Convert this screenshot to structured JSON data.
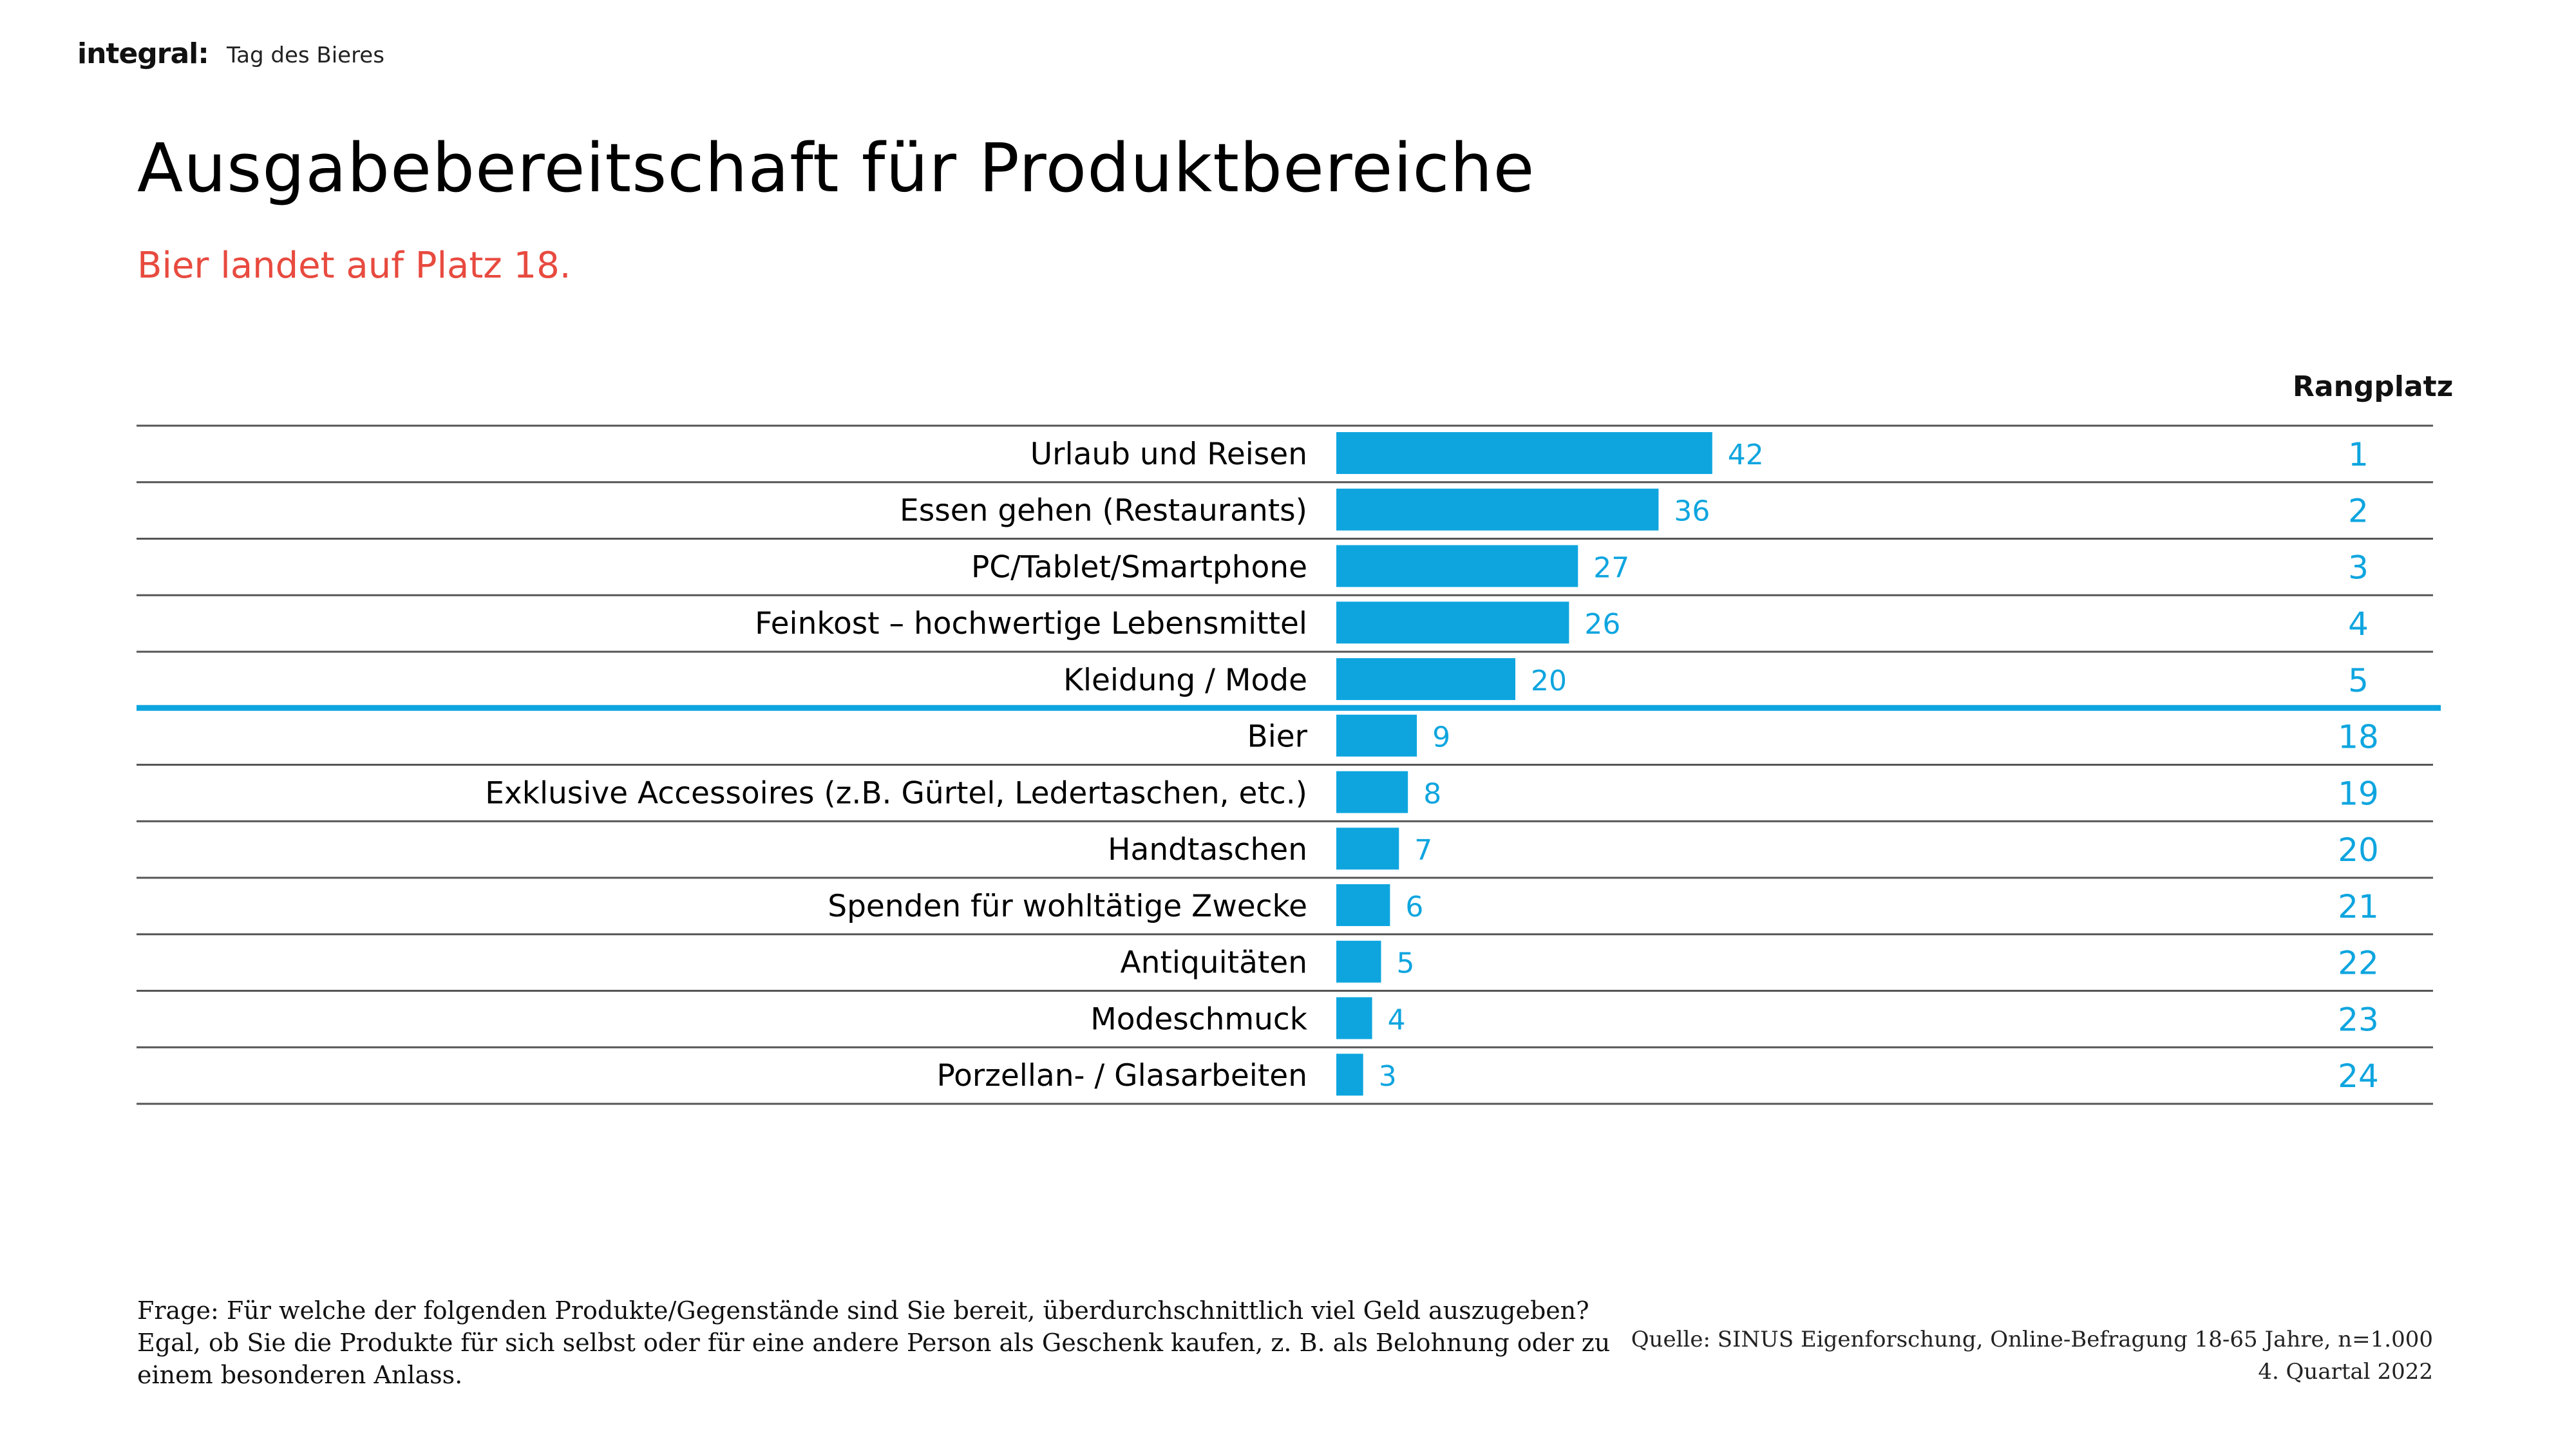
{
  "header": {
    "logo": "integral:",
    "document_name": "Tag des Bieres"
  },
  "title": "Ausgabebereitschaft für Produktbereiche",
  "subtitle": "Bier landet auf Platz 18.",
  "colors": {
    "bar": "#0ea5df",
    "value_label": "#0ea5df",
    "rank": "#0ea5df",
    "separator_highlight": "#0ea5df",
    "subtitle": "#e84a3f",
    "gridline": "#555555"
  },
  "chart_data": {
    "type": "bar",
    "orientation": "horizontal",
    "title": "Ausgabebereitschaft für Produktbereiche",
    "subtitle": "Bier landet auf Platz 18.",
    "xlabel": "",
    "ylabel": "",
    "xlim": [
      0,
      100
    ],
    "grid": false,
    "legend": "none",
    "rank_column_header": "Rangplatz",
    "separator_after_index": 4,
    "categories": [
      "Urlaub und Reisen",
      "Essen gehen (Restaurants)",
      "PC/Tablet/Smartphone",
      "Feinkost – hochwertige Lebensmittel",
      "Kleidung / Mode",
      "Bier",
      "Exklusive Accessoires (z.B. Gürtel, Ledertaschen, etc.)",
      "Handtaschen",
      "Spenden für wohltätige Zwecke",
      "Antiquitäten",
      "Modeschmuck",
      "Porzellan- / Glasarbeiten"
    ],
    "values": [
      42,
      36,
      27,
      26,
      20,
      9,
      8,
      7,
      6,
      5,
      4,
      3
    ],
    "ranks": [
      1,
      2,
      3,
      4,
      5,
      18,
      19,
      20,
      21,
      22,
      23,
      24
    ]
  },
  "footer": {
    "question_lines": [
      "Frage: Für welche der folgenden Produkte/Gegenstände sind Sie bereit, überdurchschnittlich viel Geld auszugeben?",
      "Egal, ob Sie die Produkte für sich selbst oder für eine andere Person als Geschenk kaufen, z. B. als Belohnung oder zu",
      "einem besonderen Anlass."
    ],
    "source_lines": [
      "Quelle: SINUS Eigenforschung, Online-Befragung 18-65 Jahre, n=1.000",
      "4. Quartal 2022"
    ]
  }
}
